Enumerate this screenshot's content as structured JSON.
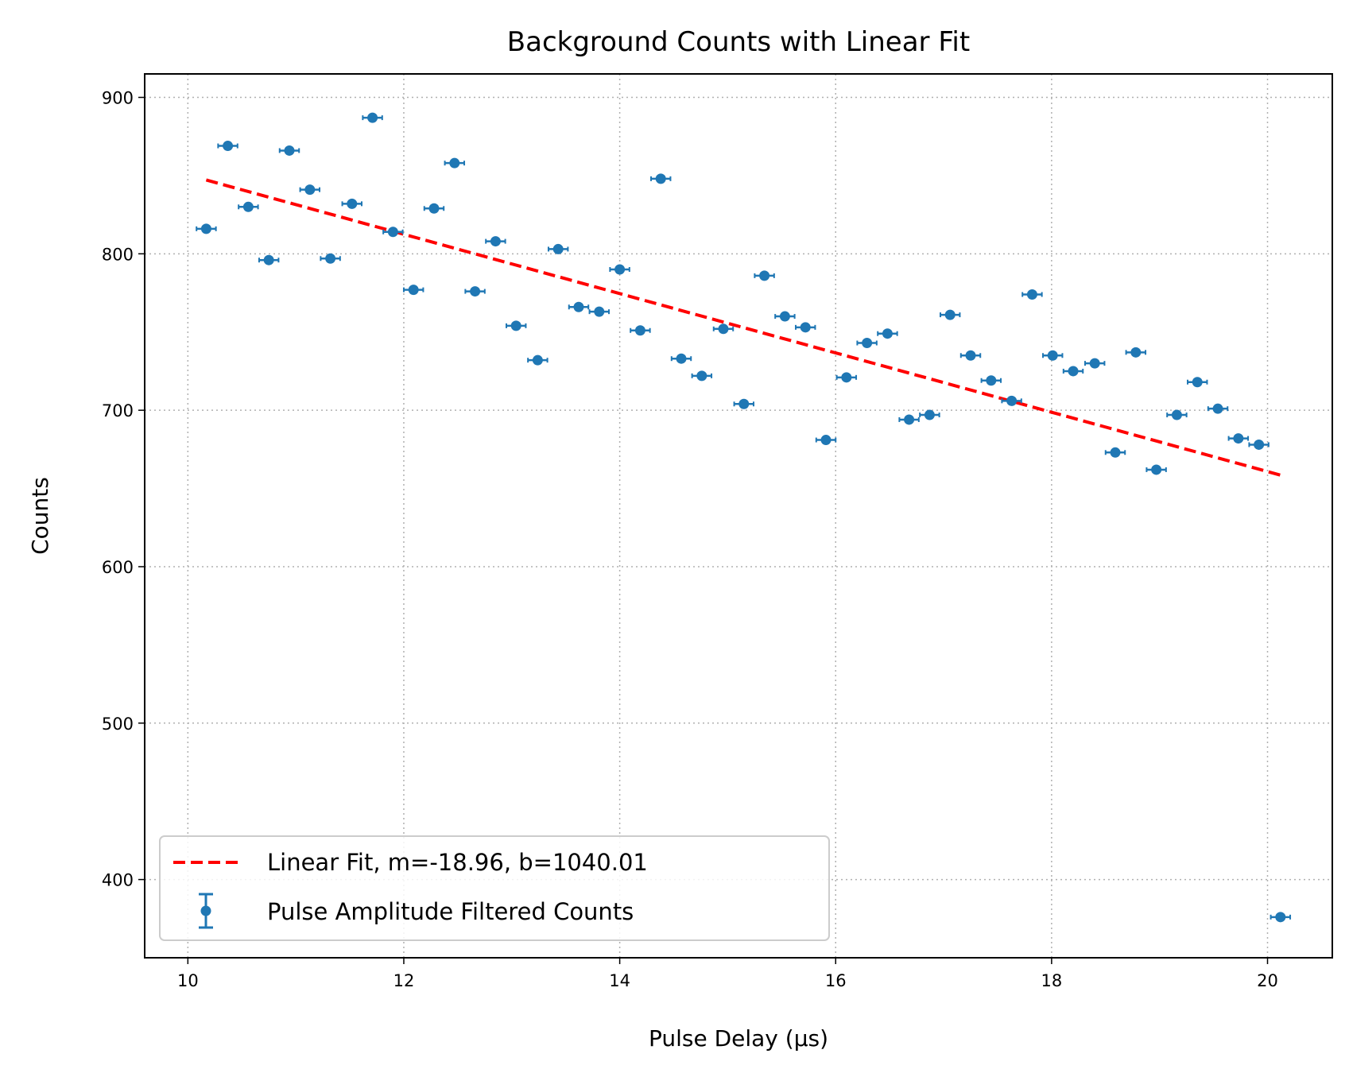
{
  "chart_data": {
    "type": "scatter",
    "title": "Background Counts with Linear Fit",
    "xlabel": "Pulse Delay (µs)",
    "ylabel": "Counts",
    "xlim": [
      9.6,
      20.6
    ],
    "ylim": [
      350,
      915
    ],
    "x_ticks": [
      10,
      12,
      14,
      16,
      18,
      20
    ],
    "y_ticks": [
      400,
      500,
      600,
      700,
      800,
      900
    ],
    "grid": true,
    "legend_position": "lower-left",
    "colors": {
      "data": "#1f77b4",
      "fit": "#ff0000",
      "grid": "#b0b0b0"
    },
    "series": [
      {
        "name": "Pulse Amplitude Filtered Counts",
        "style": "errorbar",
        "x": [
          10.17,
          10.37,
          10.56,
          10.75,
          10.94,
          11.13,
          11.32,
          11.52,
          11.71,
          11.9,
          12.09,
          12.28,
          12.47,
          12.66,
          12.85,
          13.04,
          13.24,
          13.43,
          13.62,
          13.81,
          14.0,
          14.19,
          14.38,
          14.57,
          14.76,
          14.96,
          15.15,
          15.34,
          15.53,
          15.72,
          15.91,
          16.1,
          16.29,
          16.48,
          16.68,
          16.87,
          17.06,
          17.25,
          17.44,
          17.63,
          17.82,
          18.01,
          18.2,
          18.4,
          18.59,
          18.78,
          18.97,
          19.16,
          19.35,
          19.54,
          19.73,
          19.92,
          20.12
        ],
        "y": [
          816,
          869,
          830,
          796,
          866,
          841,
          797,
          832,
          887,
          814,
          777,
          829,
          858,
          776,
          808,
          754,
          732,
          803,
          766,
          763,
          790,
          751,
          848,
          733,
          722,
          752,
          704,
          786,
          760,
          753,
          681,
          721,
          743,
          749,
          694,
          697,
          761,
          735,
          719,
          706,
          774,
          735,
          725,
          730,
          673,
          737,
          662,
          697,
          718,
          701,
          682,
          678,
          376
        ],
        "xerr": 0.09
      },
      {
        "name": "Linear Fit, m=-18.96, b=1040.01",
        "style": "dashed-line",
        "slope": -18.96,
        "intercept": 1040.01,
        "x_range": [
          10.17,
          20.12
        ]
      }
    ]
  }
}
